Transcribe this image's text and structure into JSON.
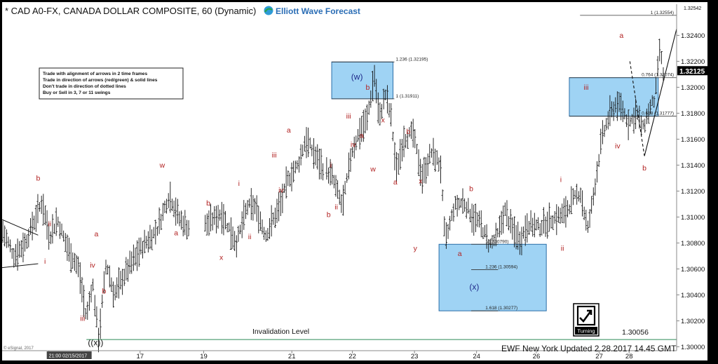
{
  "header": {
    "title": "* CAD A0-FX, CANADA DOLLAR COMPOSITE, 60 (Dynamic)",
    "brand": "Elliott Wave Forecast",
    "brand_icon": "elliott-wave-logo-icon"
  },
  "rules_box": {
    "lines": [
      "Trade with alignment of arrows in 2 time frames",
      "Trade in direction of arrows (red/green) & solid lines",
      "Don't trade in direction of dotted lines",
      "Buy or Sell in 3, 7 or 11 swings"
    ]
  },
  "footer": {
    "updated": "EWF New York Updated 2.28.2017 14.45 GMT",
    "copyright": "© eSignal, 2017",
    "turning_label": "Turning",
    "turning_icon": "turning-arrow-icon"
  },
  "colors": {
    "wave_red": "#b22222",
    "wave_blue": "#1f2a8a",
    "box_fill": "#7fc4f0",
    "invalidation": "#2e8b57",
    "last_price_bg": "#000000"
  },
  "chart_data": {
    "type": "ohlc",
    "title": "* CAD A0-FX, CANADA DOLLAR COMPOSITE, 60 (Dynamic)",
    "ylim": [
      1.2997,
      1.3264
    ],
    "y_ticks": [
      "1.30000",
      "1.30200",
      "1.30400",
      "1.30600",
      "1.30800",
      "1.31000",
      "1.31200",
      "1.31400",
      "1.31600",
      "1.31800",
      "1.32000",
      "1.32200",
      "1.32400"
    ],
    "y_tick_values": [
      1.3,
      1.302,
      1.304,
      1.306,
      1.308,
      1.31,
      1.312,
      1.314,
      1.316,
      1.318,
      1.32,
      1.322,
      1.324
    ],
    "top_label": "1.32542",
    "last_price": {
      "label": "1.32125",
      "value": 1.32125
    },
    "x_range": [
      0,
      44
    ],
    "x_ticks": [
      {
        "label": "21:00 02/15/2017",
        "x": 3.05
      },
      {
        "label": "17",
        "x": 9
      },
      {
        "label": "19",
        "x": 13.15
      },
      {
        "label": "21",
        "x": 18.9
      },
      {
        "label": "22",
        "x": 22.85
      },
      {
        "label": "23",
        "x": 26.9
      },
      {
        "label": "24",
        "x": 30.95
      },
      {
        "label": "26",
        "x": 34.85
      },
      {
        "label": "27",
        "x": 38.95
      },
      {
        "label": "28",
        "x": 40.9
      }
    ],
    "invalidation": {
      "label": "Invalidation Level",
      "value_label": "1.30056",
      "value": 1.30056
    },
    "price_path": [
      [
        0.0,
        1.309
      ],
      [
        0.8,
        1.307
      ],
      [
        1.5,
        1.308
      ],
      [
        2.2,
        1.31
      ],
      [
        2.6,
        1.3112
      ],
      [
        3.1,
        1.3085
      ],
      [
        3.6,
        1.3098
      ],
      [
        4.3,
        1.3075
      ],
      [
        5.0,
        1.306
      ],
      [
        5.5,
        1.3022
      ],
      [
        5.9,
        1.305
      ],
      [
        6.3,
        1.3006
      ],
      [
        6.8,
        1.3065
      ],
      [
        7.3,
        1.304
      ],
      [
        8.2,
        1.306
      ],
      [
        9.2,
        1.3078
      ],
      [
        10.1,
        1.309
      ],
      [
        10.9,
        1.3117
      ],
      [
        11.6,
        1.3098
      ],
      [
        12.1,
        1.3092
      ],
      [
        13.3,
        1.3094
      ],
      [
        14.3,
        1.3103
      ],
      [
        15.3,
        1.308
      ],
      [
        16.0,
        1.3108
      ],
      [
        16.5,
        1.3108
      ],
      [
        17.2,
        1.3086
      ],
      [
        18.1,
        1.3108
      ],
      [
        18.7,
        1.313
      ],
      [
        19.3,
        1.314
      ],
      [
        19.8,
        1.316
      ],
      [
        20.4,
        1.3148
      ],
      [
        20.9,
        1.3138
      ],
      [
        21.5,
        1.3132
      ],
      [
        22.2,
        1.3108
      ],
      [
        22.8,
        1.315
      ],
      [
        23.3,
        1.3165
      ],
      [
        23.8,
        1.3175
      ],
      [
        24.3,
        1.321
      ],
      [
        24.6,
        1.3175
      ],
      [
        25.0,
        1.3195
      ],
      [
        25.4,
        1.3175
      ],
      [
        25.7,
        1.3135
      ],
      [
        26.2,
        1.316
      ],
      [
        26.8,
        1.3165
      ],
      [
        27.4,
        1.313
      ],
      [
        28.0,
        1.315
      ],
      [
        28.6,
        1.314
      ],
      [
        28.9,
        1.308
      ],
      [
        29.5,
        1.3108
      ],
      [
        30.1,
        1.3112
      ],
      [
        30.7,
        1.31
      ],
      [
        31.2,
        1.3095
      ],
      [
        31.8,
        1.3078
      ],
      [
        32.3,
        1.3085
      ],
      [
        32.8,
        1.3105
      ],
      [
        33.3,
        1.309
      ],
      [
        33.8,
        1.3082
      ],
      [
        34.3,
        1.3095
      ],
      [
        35.0,
        1.3092
      ],
      [
        35.8,
        1.3098
      ],
      [
        36.6,
        1.3102
      ],
      [
        37.2,
        1.3112
      ],
      [
        37.7,
        1.312
      ],
      [
        38.2,
        1.309
      ],
      [
        38.6,
        1.3118
      ],
      [
        39.1,
        1.316
      ],
      [
        39.6,
        1.3178
      ],
      [
        40.1,
        1.3188
      ],
      [
        40.5,
        1.3182
      ],
      [
        40.9,
        1.3172
      ],
      [
        41.4,
        1.318
      ],
      [
        41.8,
        1.3168
      ],
      [
        42.2,
        1.3182
      ],
      [
        42.6,
        1.3192
      ],
      [
        42.9,
        1.323
      ],
      [
        43.2,
        1.3205
      ]
    ],
    "wave_labels": [
      {
        "text": "b",
        "x": 2.35,
        "y": 1.3128,
        "color": "red"
      },
      {
        "text": "ii",
        "x": 3.1,
        "y": 1.3093,
        "color": "red"
      },
      {
        "text": "i",
        "x": 2.8,
        "y": 1.3064,
        "color": "red"
      },
      {
        "text": "a",
        "x": 6.15,
        "y": 1.3085,
        "color": "red"
      },
      {
        "text": "iv",
        "x": 5.9,
        "y": 1.3061,
        "color": "red"
      },
      {
        "text": "b",
        "x": 6.65,
        "y": 1.3041,
        "color": "red"
      },
      {
        "text": "iii",
        "x": 5.25,
        "y": 1.302,
        "color": "red"
      },
      {
        "text": "((x))",
        "x": 6.1,
        "y": 1.3001,
        "color": "black"
      },
      {
        "text": "w",
        "x": 10.45,
        "y": 1.3138,
        "color": "red"
      },
      {
        "text": "a",
        "x": 11.35,
        "y": 1.3086,
        "color": "red"
      },
      {
        "text": "b",
        "x": 13.45,
        "y": 1.3109,
        "color": "red"
      },
      {
        "text": "x",
        "x": 14.3,
        "y": 1.3067,
        "color": "red"
      },
      {
        "text": "i",
        "x": 15.45,
        "y": 1.3124,
        "color": "red"
      },
      {
        "text": "ii",
        "x": 16.15,
        "y": 1.3083,
        "color": "red"
      },
      {
        "text": "iii",
        "x": 17.75,
        "y": 1.3146,
        "color": "red"
      },
      {
        "text": "iv",
        "x": 18.2,
        "y": 1.3119,
        "color": "red"
      },
      {
        "text": "a",
        "x": 18.7,
        "y": 1.3165,
        "color": "red"
      },
      {
        "text": "i",
        "x": 21.45,
        "y": 1.3138,
        "color": "red"
      },
      {
        "text": "ii",
        "x": 21.8,
        "y": 1.3106,
        "color": "red"
      },
      {
        "text": "b",
        "x": 21.3,
        "y": 1.31,
        "color": "red"
      },
      {
        "text": "iii",
        "x": 22.6,
        "y": 1.3176,
        "color": "red"
      },
      {
        "text": "iv",
        "x": 22.9,
        "y": 1.3154,
        "color": "red"
      },
      {
        "text": "(w)",
        "x": 23.15,
        "y": 1.3206,
        "color": "blue"
      },
      {
        "text": "b",
        "x": 23.85,
        "y": 1.3198,
        "color": "red"
      },
      {
        "text": "a",
        "x": 23.45,
        "y": 1.3161,
        "color": "red"
      },
      {
        "text": "w",
        "x": 24.2,
        "y": 1.3135,
        "color": "red"
      },
      {
        "text": "x",
        "x": 24.85,
        "y": 1.3173,
        "color": "red"
      },
      {
        "text": "b",
        "x": 26.5,
        "y": 1.3164,
        "color": "red"
      },
      {
        "text": "a",
        "x": 25.65,
        "y": 1.3125,
        "color": "red"
      },
      {
        "text": "x",
        "x": 27.3,
        "y": 1.3126,
        "color": "red"
      },
      {
        "text": "y",
        "x": 26.95,
        "y": 1.3074,
        "color": "red"
      },
      {
        "text": "b",
        "x": 30.6,
        "y": 1.312,
        "color": "red"
      },
      {
        "text": "a",
        "x": 29.85,
        "y": 1.307,
        "color": "red"
      },
      {
        "text": "(x)",
        "x": 30.8,
        "y": 1.3044,
        "color": "blue"
      },
      {
        "text": "i",
        "x": 36.45,
        "y": 1.3127,
        "color": "red"
      },
      {
        "text": "ii",
        "x": 36.55,
        "y": 1.3074,
        "color": "red"
      },
      {
        "text": "iii",
        "x": 38.1,
        "y": 1.3198,
        "color": "red"
      },
      {
        "text": "iv",
        "x": 40.15,
        "y": 1.3153,
        "color": "red"
      },
      {
        "text": "a",
        "x": 40.4,
        "y": 1.3238,
        "color": "red"
      },
      {
        "text": "b",
        "x": 41.9,
        "y": 1.3136,
        "color": "red"
      }
    ],
    "fib_boxes": [
      {
        "name": "w-box",
        "x0": 21.5,
        "x1": 25.5,
        "y0": 1.31911,
        "y1": 1.32195,
        "lines": [
          {
            "label": "1.236 (1.32195)",
            "value": 1.32195
          },
          {
            "label": "1 (1.31911)",
            "value": 1.31911
          }
        ]
      },
      {
        "name": "x-box",
        "x0": 28.5,
        "x1": 35.5,
        "y0": 1.30277,
        "y1": 1.3079,
        "lines": [
          {
            "label": "1 (1.30790)",
            "value": 1.3079
          },
          {
            "label": "1.236 (1.30594)",
            "value": 1.30594
          },
          {
            "label": "1.618 (1.30277)",
            "value": 1.30277
          }
        ]
      },
      {
        "name": "target-box",
        "x0": 37.0,
        "x1": 42.8,
        "y0": 1.31777,
        "y1": 1.32074,
        "lines": [
          {
            "label": "0.764 (1.32074)",
            "value": 1.32074
          },
          {
            "label": "0.618 (1.31777)",
            "value": 1.31777
          }
        ]
      }
    ],
    "ext_line": {
      "label": "1 (1.32554)",
      "value": 1.32554,
      "x0": 37.7
    },
    "projection": {
      "dashed": [
        [
          40.95,
          1.322
        ],
        [
          41.9,
          1.3147
        ]
      ],
      "solid": [
        [
          41.9,
          1.3147
        ],
        [
          44.0,
          1.3245
        ]
      ]
    },
    "triangle": [
      [
        0.0,
        1.3098
      ],
      [
        2.35,
        1.3086
      ],
      [
        0.0,
        1.3061
      ],
      [
        2.35,
        1.3064
      ]
    ]
  }
}
